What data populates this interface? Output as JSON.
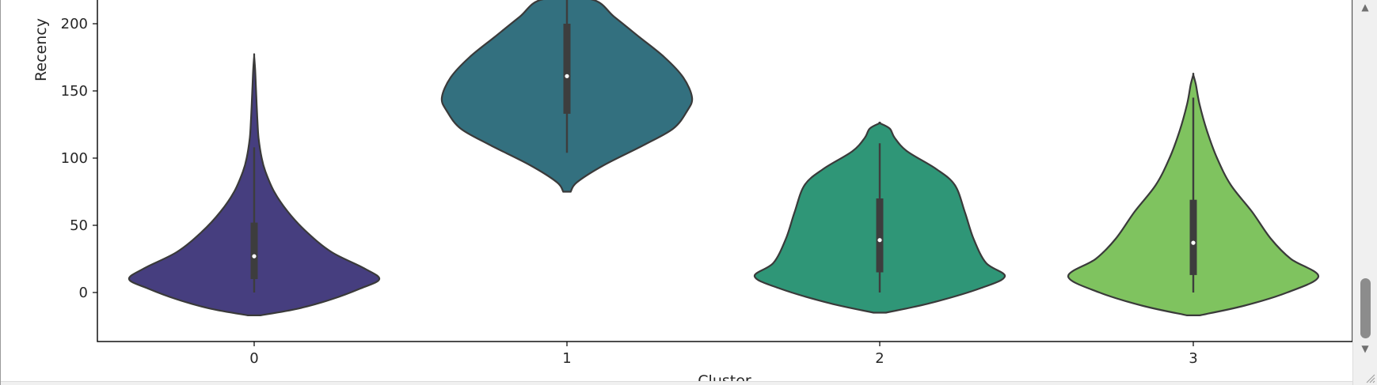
{
  "chart_data": {
    "type": "violin",
    "title": "",
    "xlabel": "Cluster",
    "ylabel": "Recency",
    "categories": [
      "0",
      "1",
      "2",
      "3"
    ],
    "ylim": [
      -36,
      218
    ],
    "yticks": [
      0,
      50,
      100,
      150,
      200
    ],
    "grid": false,
    "violins": [
      {
        "category": "0",
        "color": "#463e7f",
        "min": 0,
        "q1": 10,
        "median": 27,
        "q3": 52,
        "whisker_high": 108,
        "range": [
          -17,
          176
        ],
        "profile": [
          [
            -17,
            0.05
          ],
          [
            -12,
            0.35
          ],
          [
            -5,
            0.62
          ],
          [
            3,
            0.85
          ],
          [
            10,
            1.0
          ],
          [
            18,
            0.88
          ],
          [
            30,
            0.62
          ],
          [
            45,
            0.42
          ],
          [
            60,
            0.27
          ],
          [
            75,
            0.16
          ],
          [
            90,
            0.09
          ],
          [
            100,
            0.06
          ],
          [
            115,
            0.035
          ],
          [
            130,
            0.025
          ],
          [
            150,
            0.015
          ],
          [
            165,
            0.008
          ],
          [
            176,
            0.0
          ]
        ]
      },
      {
        "category": "1",
        "color": "#33707f",
        "min": 104,
        "q1": 133,
        "median": 161,
        "q3": 200,
        "whisker_high": 218,
        "range": [
          75,
          218
        ],
        "profile": [
          [
            75,
            0.03
          ],
          [
            82,
            0.08
          ],
          [
            95,
            0.3
          ],
          [
            110,
            0.62
          ],
          [
            122,
            0.85
          ],
          [
            135,
            0.96
          ],
          [
            145,
            1.0
          ],
          [
            160,
            0.93
          ],
          [
            175,
            0.78
          ],
          [
            190,
            0.58
          ],
          [
            205,
            0.38
          ],
          [
            218,
            0.2
          ]
        ]
      },
      {
        "category": "2",
        "color": "#2f9677",
        "min": 0,
        "q1": 15,
        "median": 39,
        "q3": 70,
        "whisker_high": 111,
        "range": [
          -15,
          126
        ],
        "profile": [
          [
            -15,
            0.05
          ],
          [
            -8,
            0.4
          ],
          [
            3,
            0.8
          ],
          [
            12,
            1.0
          ],
          [
            22,
            0.85
          ],
          [
            40,
            0.75
          ],
          [
            60,
            0.68
          ],
          [
            80,
            0.6
          ],
          [
            92,
            0.45
          ],
          [
            105,
            0.22
          ],
          [
            115,
            0.12
          ],
          [
            122,
            0.08
          ],
          [
            126,
            0.0
          ]
        ]
      },
      {
        "category": "3",
        "color": "#7fc35f",
        "min": 0,
        "q1": 13,
        "median": 37,
        "q3": 69,
        "whisker_high": 145,
        "range": [
          -17,
          162
        ],
        "profile": [
          [
            -17,
            0.05
          ],
          [
            -10,
            0.4
          ],
          [
            0,
            0.75
          ],
          [
            12,
            1.0
          ],
          [
            25,
            0.78
          ],
          [
            40,
            0.62
          ],
          [
            60,
            0.47
          ],
          [
            80,
            0.3
          ],
          [
            100,
            0.19
          ],
          [
            120,
            0.11
          ],
          [
            140,
            0.05
          ],
          [
            155,
            0.02
          ],
          [
            162,
            0.0
          ]
        ]
      }
    ]
  },
  "ui": {
    "scroll_up_icon": "▲",
    "scroll_down_icon": "▼"
  }
}
